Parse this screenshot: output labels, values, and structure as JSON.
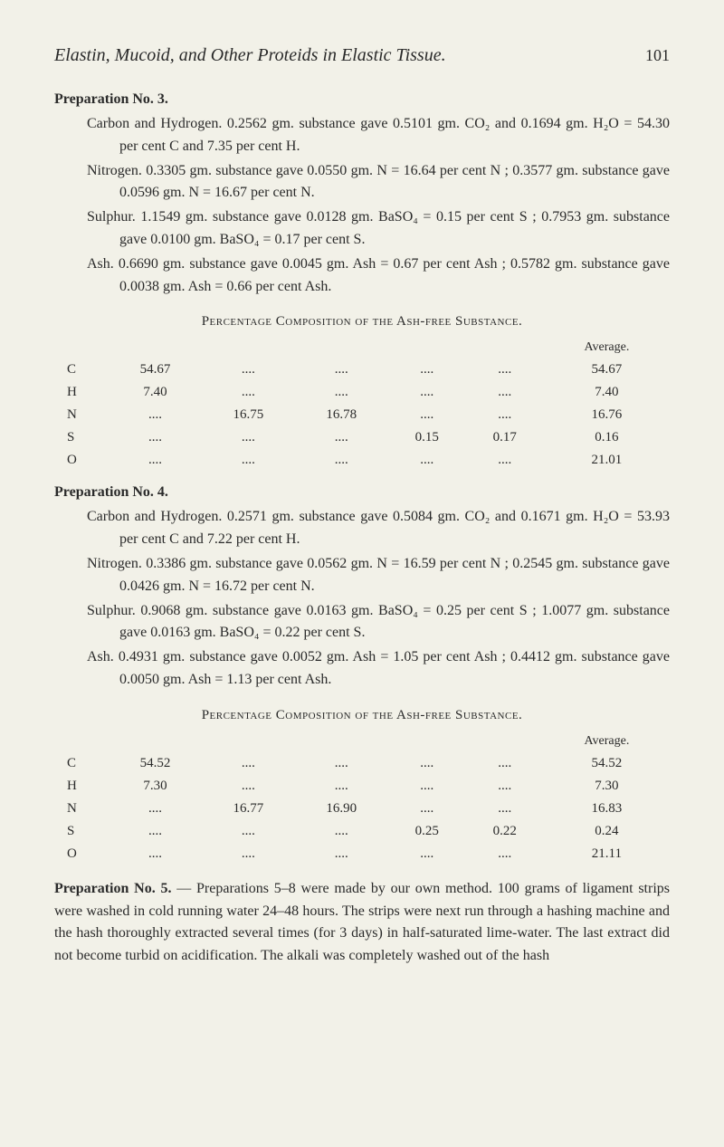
{
  "header": {
    "title": "Elastin, Mucoid, and Other Proteids in Elastic Tissue.",
    "page": "101"
  },
  "prep3": {
    "heading": "Preparation No. 3.",
    "carbon": "Carbon and Hydrogen.   0.2562 gm. substance gave 0.5101 gm. CO₂ and 0.1694 gm. H₂O = 54.30 per cent C and 7.35 per cent H.",
    "nitrogen": "Nitrogen.   0.3305 gm. substance gave 0.0550 gm. N = 16.64 per cent N ; 0.3577 gm. substance gave 0.0596 gm. N = 16.67 per cent N.",
    "sulphur": "Sulphur.   1.1549 gm. substance gave 0.0128 gm. BaSO₄ = 0.15 per cent S ; 0.7953 gm. substance gave 0.0100 gm. BaSO₄ = 0.17 per cent S.",
    "ash": "Ash.   0.6690 gm. substance gave 0.0045 gm. Ash = 0.67 per cent Ash ; 0.5782 gm. substance gave 0.0038 gm. Ash = 0.66 per cent Ash.",
    "tableTitle": "Percentage Composition of the Ash-free Substance.",
    "avgLabel": "Average.",
    "rows": [
      {
        "el": "C",
        "c1": "54.67",
        "c2": "....",
        "c3": "....",
        "c4": "....",
        "c5": "....",
        "avg": "54.67"
      },
      {
        "el": "H",
        "c1": "7.40",
        "c2": "....",
        "c3": "....",
        "c4": "....",
        "c5": "....",
        "avg": "7.40"
      },
      {
        "el": "N",
        "c1": "....",
        "c2": "16.75",
        "c3": "16.78",
        "c4": "....",
        "c5": "....",
        "avg": "16.76"
      },
      {
        "el": "S",
        "c1": "....",
        "c2": "....",
        "c3": "....",
        "c4": "0.15",
        "c5": "0.17",
        "avg": "0.16"
      },
      {
        "el": "O",
        "c1": "....",
        "c2": "....",
        "c3": "....",
        "c4": "....",
        "c5": "....",
        "avg": "21.01"
      }
    ]
  },
  "prep4": {
    "heading": "Preparation No. 4.",
    "carbon": "Carbon and Hydrogen.   0.2571 gm. substance gave 0.5084 gm. CO₂ and 0.1671 gm. H₂O = 53.93 per cent C and 7.22 per cent H.",
    "nitrogen": "Nitrogen.   0.3386 gm. substance gave 0.0562 gm. N = 16.59 per cent N ; 0.2545 gm. substance gave 0.0426 gm. N = 16.72 per cent N.",
    "sulphur": "Sulphur.   0.9068 gm. substance gave 0.0163 gm. BaSO₄ = 0.25 per cent S ; 1.0077 gm. substance gave 0.0163 gm. BaSO₄ = 0.22 per cent S.",
    "ash": "Ash.   0.4931 gm. substance gave 0.0052 gm. Ash = 1.05 per cent Ash ; 0.4412 gm. substance gave 0.0050 gm. Ash = 1.13 per cent Ash.",
    "tableTitle": "Percentage Composition of the Ash-free Substance.",
    "avgLabel": "Average.",
    "rows": [
      {
        "el": "C",
        "c1": "54.52",
        "c2": "....",
        "c3": "....",
        "c4": "....",
        "c5": "....",
        "avg": "54.52"
      },
      {
        "el": "H",
        "c1": "7.30",
        "c2": "....",
        "c3": "....",
        "c4": "....",
        "c5": "....",
        "avg": "7.30"
      },
      {
        "el": "N",
        "c1": "....",
        "c2": "16.77",
        "c3": "16.90",
        "c4": "....",
        "c5": "....",
        "avg": "16.83"
      },
      {
        "el": "S",
        "c1": "....",
        "c2": "....",
        "c3": "....",
        "c4": "0.25",
        "c5": "0.22",
        "avg": "0.24"
      },
      {
        "el": "O",
        "c1": "....",
        "c2": "....",
        "c3": "....",
        "c4": "....",
        "c5": "....",
        "avg": "21.11"
      }
    ]
  },
  "prep5": {
    "lead": "Preparation No. 5.",
    "body": " — Preparations 5–8 were made by our own method. 100 grams of ligament strips were washed in cold running water 24–48 hours. The strips were next run through a hashing machine and the hash thoroughly extracted several times (for 3 days) in half-saturated lime-water. The last extract did not become turbid on acidification. The alkali was completely washed out of the hash"
  }
}
